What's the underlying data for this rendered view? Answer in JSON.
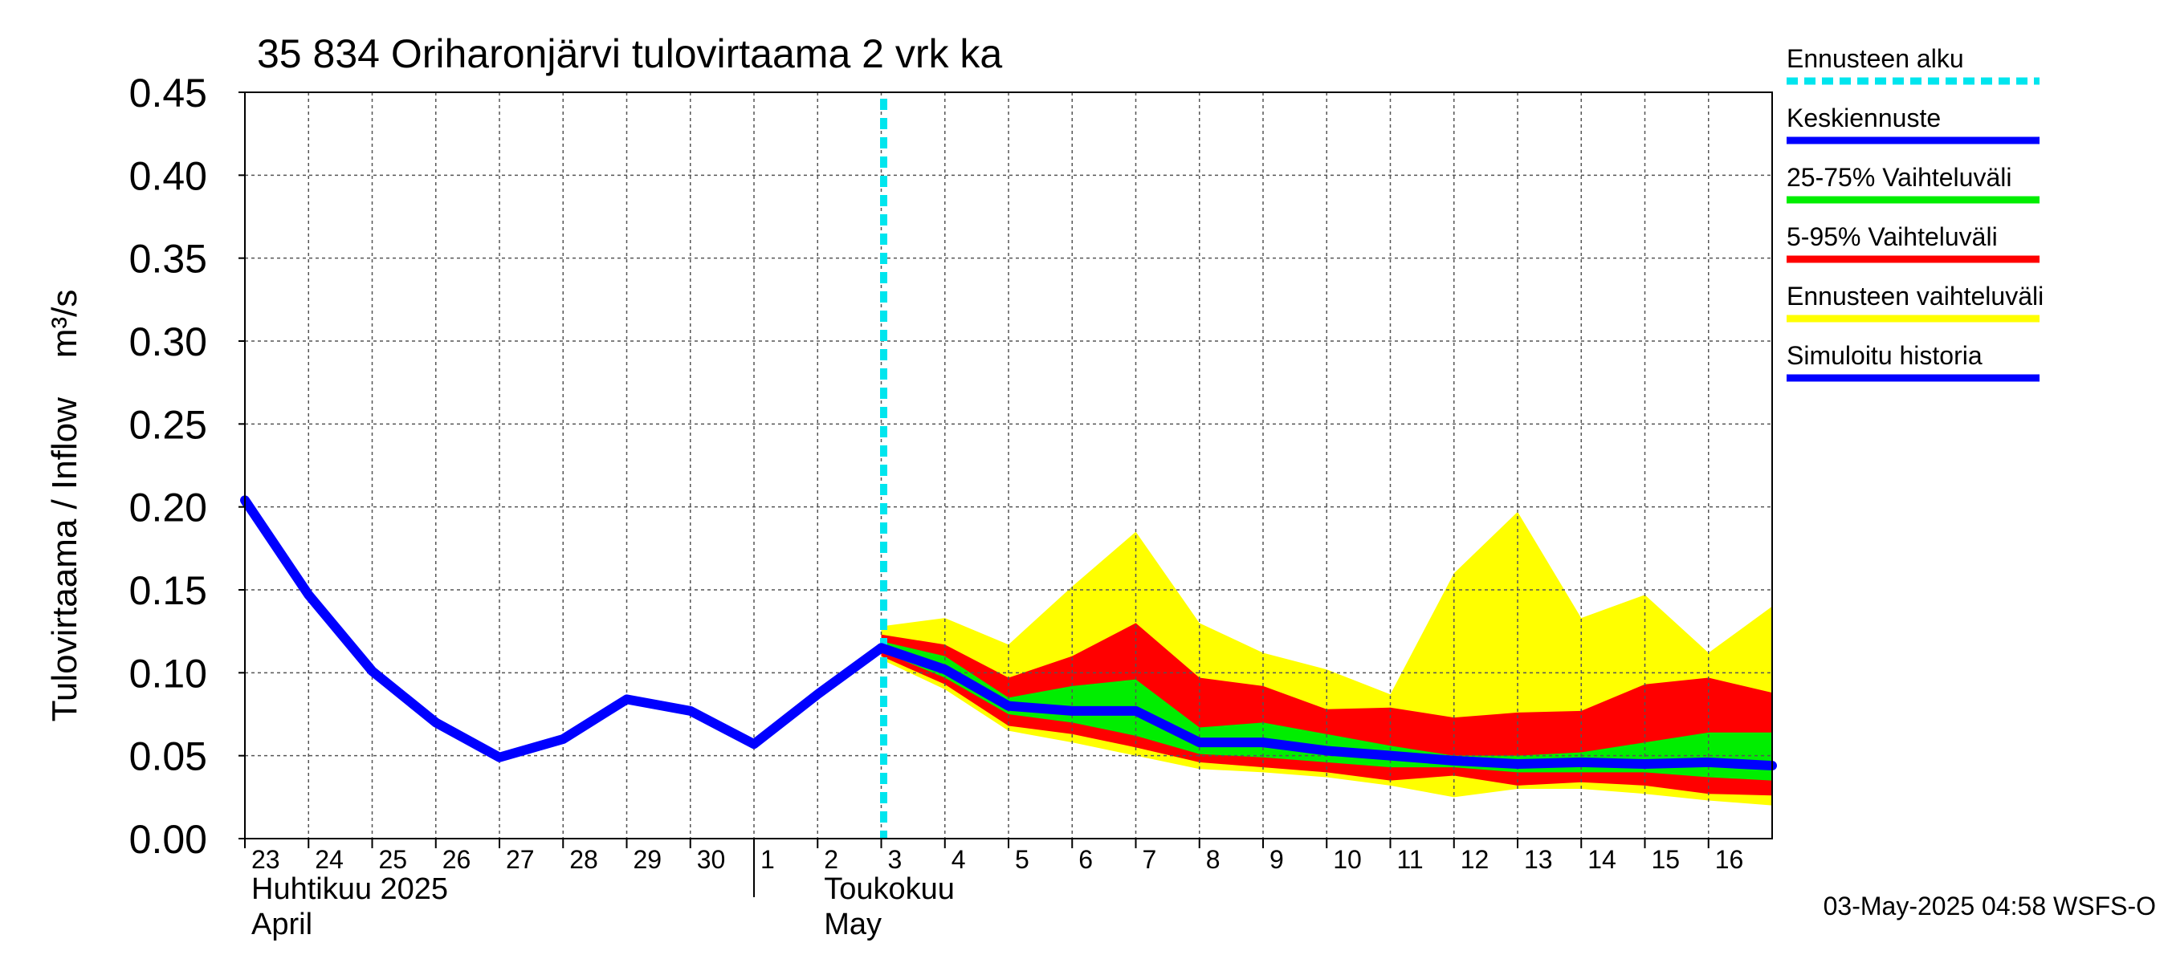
{
  "chart_data": {
    "type": "area",
    "title": "35 834 Oriharonjärvi tulovirtaama 2 vrk ka",
    "ylabel": "Tulovirtaama / Inflow    m³/s",
    "ylim": [
      0,
      0.45
    ],
    "yticks": [
      "0.00",
      "0.05",
      "0.10",
      "0.15",
      "0.20",
      "0.25",
      "0.30",
      "0.35",
      "0.40",
      "0.45"
    ],
    "xlim": [
      0,
      24
    ],
    "x_ticks": [
      {
        "x": 0,
        "label": "23"
      },
      {
        "x": 1,
        "label": "24"
      },
      {
        "x": 2,
        "label": "25"
      },
      {
        "x": 3,
        "label": "26"
      },
      {
        "x": 4,
        "label": "27"
      },
      {
        "x": 5,
        "label": "28"
      },
      {
        "x": 6,
        "label": "29"
      },
      {
        "x": 7,
        "label": "30"
      },
      {
        "x": 8,
        "label": "1"
      },
      {
        "x": 9,
        "label": "2"
      },
      {
        "x": 10,
        "label": "3"
      },
      {
        "x": 11,
        "label": "4"
      },
      {
        "x": 12,
        "label": "5"
      },
      {
        "x": 13,
        "label": "6"
      },
      {
        "x": 14,
        "label": "7"
      },
      {
        "x": 15,
        "label": "8"
      },
      {
        "x": 16,
        "label": "9"
      },
      {
        "x": 17,
        "label": "10"
      },
      {
        "x": 18,
        "label": "11"
      },
      {
        "x": 19,
        "label": "12"
      },
      {
        "x": 20,
        "label": "13"
      },
      {
        "x": 21,
        "label": "14"
      },
      {
        "x": 22,
        "label": "15"
      },
      {
        "x": 23,
        "label": "16"
      }
    ],
    "month_labels": [
      {
        "x": 0,
        "line1": "Huhtikuu  2025",
        "line2": "April"
      },
      {
        "x": 9,
        "line1": "Toukokuu",
        "line2": "May"
      }
    ],
    "month_divider_x": 8,
    "forecast_start_x": 10,
    "grid": true,
    "series": [
      {
        "name": "Ennusteen vaihteluväli",
        "color": "#ffff00",
        "kind": "band",
        "x": [
          10,
          11,
          12,
          13,
          14,
          15,
          16,
          17,
          18,
          19,
          20,
          21,
          22,
          23,
          24
        ],
        "upper": [
          0.128,
          0.133,
          0.117,
          0.152,
          0.185,
          0.13,
          0.112,
          0.102,
          0.087,
          0.16,
          0.197,
          0.133,
          0.147,
          0.112,
          0.14
        ],
        "lower": [
          0.108,
          0.09,
          0.065,
          0.058,
          0.05,
          0.042,
          0.04,
          0.037,
          0.032,
          0.025,
          0.03,
          0.03,
          0.027,
          0.023,
          0.02
        ]
      },
      {
        "name": "5-95% Vaihteluväli",
        "color": "#ff0000",
        "kind": "band",
        "x": [
          10,
          11,
          12,
          13,
          14,
          15,
          16,
          17,
          18,
          19,
          20,
          21,
          22,
          23,
          24
        ],
        "upper": [
          0.123,
          0.117,
          0.097,
          0.11,
          0.13,
          0.097,
          0.092,
          0.078,
          0.079,
          0.073,
          0.076,
          0.077,
          0.093,
          0.097,
          0.088
        ],
        "lower": [
          0.11,
          0.093,
          0.068,
          0.063,
          0.055,
          0.046,
          0.043,
          0.04,
          0.035,
          0.038,
          0.032,
          0.034,
          0.032,
          0.027,
          0.026
        ]
      },
      {
        "name": "25-75% Vaihteluväli",
        "color": "#00ee00",
        "kind": "band",
        "x": [
          10,
          11,
          12,
          13,
          14,
          15,
          16,
          17,
          18,
          19,
          20,
          21,
          22,
          23,
          24
        ],
        "upper": [
          0.119,
          0.11,
          0.085,
          0.092,
          0.096,
          0.067,
          0.07,
          0.063,
          0.056,
          0.05,
          0.05,
          0.052,
          0.058,
          0.064,
          0.064
        ],
        "lower": [
          0.113,
          0.097,
          0.075,
          0.07,
          0.062,
          0.051,
          0.049,
          0.046,
          0.043,
          0.043,
          0.04,
          0.04,
          0.04,
          0.037,
          0.035
        ]
      },
      {
        "name": "Simuloitu historia",
        "color": "#0000ff",
        "kind": "line",
        "x": [
          0,
          1,
          2,
          3,
          4,
          5,
          6,
          7,
          8,
          9,
          10
        ],
        "values": [
          0.204,
          0.147,
          0.101,
          0.07,
          0.049,
          0.06,
          0.084,
          0.077,
          0.057,
          0.087,
          0.115
        ]
      },
      {
        "name": "Keskiennuste",
        "color": "#0000ff",
        "kind": "line",
        "x": [
          10,
          11,
          12,
          13,
          14,
          15,
          16,
          17,
          18,
          19,
          20,
          21,
          22,
          23,
          24
        ],
        "values": [
          0.115,
          0.102,
          0.08,
          0.077,
          0.077,
          0.058,
          0.058,
          0.053,
          0.05,
          0.047,
          0.045,
          0.046,
          0.045,
          0.046,
          0.044
        ]
      }
    ],
    "legend": [
      {
        "label": "Ennusteen alku",
        "color": "#00e5ee",
        "style": "dashed"
      },
      {
        "label": "Keskiennuste",
        "color": "#0000ff",
        "style": "solid"
      },
      {
        "label": "25-75% Vaihteluväli",
        "color": "#00ee00",
        "style": "solid"
      },
      {
        "label": "5-95% Vaihteluväli",
        "color": "#ff0000",
        "style": "solid"
      },
      {
        "label": "Ennusteen vaihteluväli",
        "color": "#ffff00",
        "style": "solid"
      },
      {
        "label": "Simuloitu historia",
        "color": "#0000ff",
        "style": "solid"
      }
    ],
    "legend_position": "right",
    "footer": "03-May-2025 04:58 WSFS-O"
  }
}
